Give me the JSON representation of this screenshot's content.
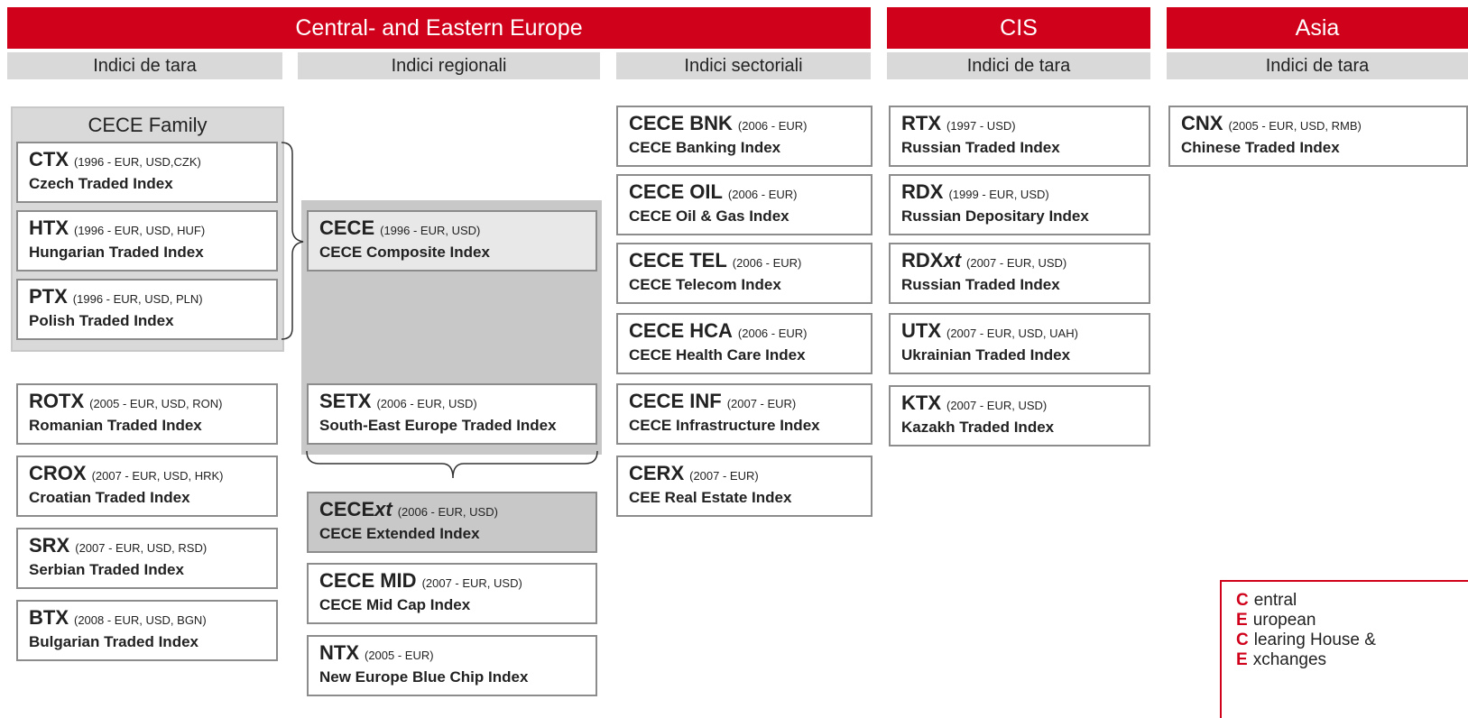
{
  "regions": [
    {
      "title": "Central- and Eastern Europe"
    },
    {
      "title": "CIS"
    },
    {
      "title": "Asia"
    }
  ],
  "subheaders": [
    "Indici de tara",
    "Indici regionali",
    "Indici sectoriali",
    "Indici de tara",
    "Indici de tara"
  ],
  "cece_family": {
    "title": "CECE Family",
    "indices": [
      {
        "code": "CTX",
        "info": "(1996 - EUR, USD,CZK)",
        "name": "Czech Traded Index"
      },
      {
        "code": "HTX",
        "info": "(1996 - EUR, USD, HUF)",
        "name": "Hungarian Traded Index"
      },
      {
        "code": "PTX",
        "info": "(1996 - EUR, USD, PLN)",
        "name": "Polish Traded Index"
      }
    ]
  },
  "country_indices": [
    {
      "code": "ROTX",
      "info": "(2005 - EUR, USD, RON)",
      "name": "Romanian Traded Index"
    },
    {
      "code": "CROX",
      "info": "(2007 - EUR, USD, HRK)",
      "name": "Croatian Traded Index"
    },
    {
      "code": "SRX",
      "info": "(2007 - EUR, USD, RSD)",
      "name": "Serbian Traded Index"
    },
    {
      "code": "BTX",
      "info": "(2008 - EUR, USD, BGN)",
      "name": "Bulgarian Traded Index"
    }
  ],
  "regional_indices": [
    {
      "code": "CECE",
      "info": "(1996 - EUR, USD)",
      "name": "CECE Composite Index"
    },
    {
      "code": "SETX",
      "info": "(2006 - EUR, USD)",
      "name": "South-East Europe Traded Index"
    },
    {
      "code": "CECE",
      "code_suffix": "xt",
      "info": "(2006 - EUR, USD)",
      "name": "CECE Extended Index"
    },
    {
      "code": "CECE MID",
      "info": "(2007 - EUR, USD)",
      "name": "CECE Mid Cap Index"
    },
    {
      "code": "NTX",
      "info": "(2005 - EUR)",
      "name": "New Europe Blue Chip Index"
    }
  ],
  "sectoral_indices": [
    {
      "code": "CECE BNK",
      "info": "(2006 - EUR)",
      "name": "CECE Banking Index"
    },
    {
      "code": "CECE OIL",
      "info": "(2006 - EUR)",
      "name": "CECE Oil & Gas Index"
    },
    {
      "code": "CECE TEL",
      "info": "(2006 - EUR)",
      "name": "CECE Telecom Index"
    },
    {
      "code": "CECE HCA",
      "info": "(2006 - EUR)",
      "name": "CECE Health Care Index"
    },
    {
      "code": "CECE INF",
      "info": "(2007 - EUR)",
      "name": "CECE Infrastructure Index"
    },
    {
      "code": "CERX",
      "info": "(2007 - EUR)",
      "name": "CEE Real Estate Index"
    }
  ],
  "cis_indices": [
    {
      "code": "RTX",
      "info": "(1997 - USD)",
      "name": "Russian Traded Index"
    },
    {
      "code": "RDX",
      "info": "(1999 - EUR,  USD)",
      "name": "Russian Depositary Index"
    },
    {
      "code": "RDX",
      "code_suffix": "xt",
      "info": "(2007 - EUR, USD)",
      "name": "Russian Traded Index"
    },
    {
      "code": "UTX",
      "info": "(2007 - EUR, USD, UAH)",
      "name": "Ukrainian Traded Index"
    },
    {
      "code": "KTX",
      "info": "(2007 - EUR, USD)",
      "name": "Kazakh Traded Index"
    }
  ],
  "asia_indices": [
    {
      "code": "CNX",
      "info": "(2005 - EUR, USD, RMB)",
      "name": "Chinese Traded Index"
    }
  ],
  "legend": [
    {
      "initial": "C",
      "rest": "entral"
    },
    {
      "initial": "E",
      "rest": "uropean"
    },
    {
      "initial": "C",
      "rest": "learing House &"
    },
    {
      "initial": "E",
      "rest": "xchanges"
    }
  ]
}
